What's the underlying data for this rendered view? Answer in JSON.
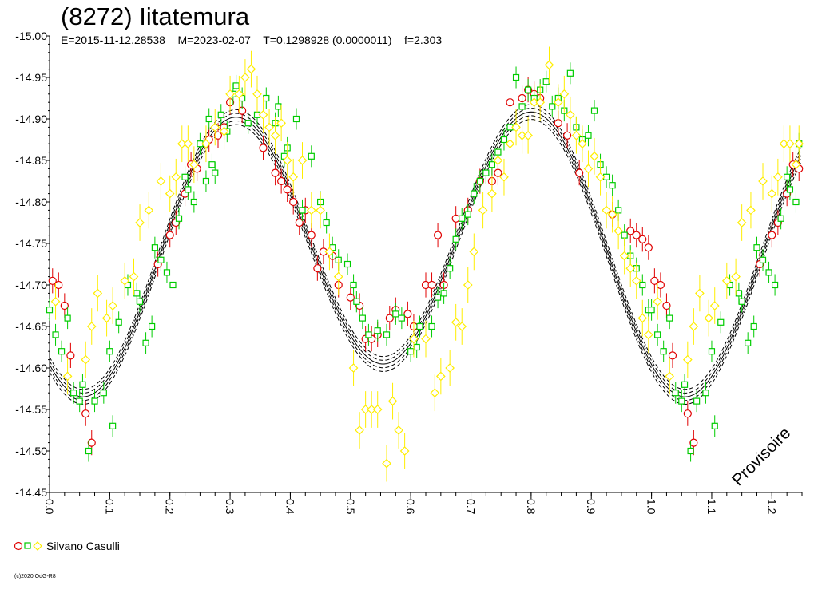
{
  "title": "(8272) Iitatemura",
  "subtitle": "E=2015-11-12.28538    M=2023-02-07    T=0.1298928 (0.0000011)    f=2.303",
  "watermark": "Provisoire",
  "copyright": "(c)2020 OdG-R8",
  "legend": {
    "label": "Silvano Casulli"
  },
  "colors": {
    "series1": "#e00000",
    "series2": "#00cc00",
    "series3": "#ffee00",
    "fit": "#000000"
  },
  "chart_data": {
    "type": "scatter",
    "xlim": [
      0,
      1.25
    ],
    "ylim": [
      -15.0,
      -14.45
    ],
    "y_inverted": true,
    "xticks": [
      "0.0",
      "0.1",
      "0.2",
      "0.3",
      "0.4",
      "0.5",
      "0.6",
      "0.7",
      "0.8",
      "0.9",
      "1.0",
      "1.1",
      "1.2"
    ],
    "yticks": [
      "-15.00",
      "-14.95",
      "-14.90",
      "-14.85",
      "-14.80",
      "-14.75",
      "-14.70",
      "-14.65",
      "-14.60",
      "-14.55",
      "-14.50",
      "-14.45"
    ],
    "series": [
      {
        "marker": "circle",
        "points": [
          [
            0.005,
            -14.705
          ],
          [
            0.015,
            -14.7
          ],
          [
            0.025,
            -14.675
          ],
          [
            0.035,
            -14.615
          ],
          [
            0.06,
            -14.545
          ],
          [
            0.07,
            -14.51
          ],
          [
            0.18,
            -14.725
          ],
          [
            0.2,
            -14.76
          ],
          [
            0.21,
            -14.775
          ],
          [
            0.225,
            -14.81
          ],
          [
            0.235,
            -14.845
          ],
          [
            0.245,
            -14.84
          ],
          [
            0.265,
            -14.875
          ],
          [
            0.28,
            -14.88
          ],
          [
            0.29,
            -14.89
          ],
          [
            0.3,
            -14.92
          ],
          [
            0.32,
            -14.91
          ],
          [
            0.355,
            -14.865
          ],
          [
            0.375,
            -14.835
          ],
          [
            0.385,
            -14.825
          ],
          [
            0.395,
            -14.815
          ],
          [
            0.405,
            -14.8
          ],
          [
            0.415,
            -14.775
          ],
          [
            0.425,
            -14.79
          ],
          [
            0.435,
            -14.76
          ],
          [
            0.445,
            -14.72
          ],
          [
            0.455,
            -14.74
          ],
          [
            0.47,
            -14.735
          ],
          [
            0.48,
            -14.7
          ],
          [
            0.5,
            -14.685
          ],
          [
            0.515,
            -14.675
          ],
          [
            0.525,
            -14.635
          ],
          [
            0.535,
            -14.635
          ],
          [
            0.545,
            -14.64
          ],
          [
            0.565,
            -14.66
          ],
          [
            0.575,
            -14.67
          ],
          [
            0.595,
            -14.665
          ],
          [
            0.605,
            -14.65
          ],
          [
            0.625,
            -14.7
          ],
          [
            0.635,
            -14.7
          ],
          [
            0.645,
            -14.76
          ],
          [
            0.655,
            -14.7
          ],
          [
            0.675,
            -14.78
          ],
          [
            0.695,
            -14.79
          ],
          [
            0.715,
            -14.825
          ],
          [
            0.735,
            -14.825
          ],
          [
            0.745,
            -14.835
          ],
          [
            0.765,
            -14.92
          ],
          [
            0.785,
            -14.925
          ],
          [
            0.795,
            -14.935
          ],
          [
            0.805,
            -14.93
          ],
          [
            0.815,
            -14.925
          ],
          [
            0.845,
            -14.895
          ],
          [
            0.86,
            -14.88
          ],
          [
            0.88,
            -14.835
          ],
          [
            0.935,
            -14.785
          ],
          [
            0.965,
            -14.765
          ],
          [
            0.975,
            -14.76
          ],
          [
            0.985,
            -14.755
          ],
          [
            0.995,
            -14.745
          ],
          [
            1.005,
            -14.705
          ],
          [
            1.015,
            -14.7
          ],
          [
            1.025,
            -14.675
          ],
          [
            1.035,
            -14.615
          ],
          [
            1.06,
            -14.545
          ],
          [
            1.07,
            -14.51
          ],
          [
            1.18,
            -14.725
          ],
          [
            1.2,
            -14.76
          ],
          [
            1.21,
            -14.775
          ],
          [
            1.225,
            -14.81
          ],
          [
            1.235,
            -14.845
          ],
          [
            1.245,
            -14.84
          ]
        ]
      },
      {
        "marker": "square",
        "points": [
          [
            0.0,
            -14.67
          ],
          [
            0.01,
            -14.64
          ],
          [
            0.02,
            -14.62
          ],
          [
            0.03,
            -14.66
          ],
          [
            0.04,
            -14.57
          ],
          [
            0.05,
            -14.56
          ],
          [
            0.055,
            -14.58
          ],
          [
            0.065,
            -14.5
          ],
          [
            0.075,
            -14.56
          ],
          [
            0.09,
            -14.57
          ],
          [
            0.1,
            -14.62
          ],
          [
            0.105,
            -14.53
          ],
          [
            0.115,
            -14.655
          ],
          [
            0.13,
            -14.7
          ],
          [
            0.145,
            -14.69
          ],
          [
            0.15,
            -14.68
          ],
          [
            0.16,
            -14.63
          ],
          [
            0.17,
            -14.65
          ],
          [
            0.175,
            -14.745
          ],
          [
            0.185,
            -14.73
          ],
          [
            0.195,
            -14.715
          ],
          [
            0.205,
            -14.7
          ],
          [
            0.215,
            -14.78
          ],
          [
            0.225,
            -14.83
          ],
          [
            0.23,
            -14.815
          ],
          [
            0.24,
            -14.8
          ],
          [
            0.25,
            -14.87
          ],
          [
            0.26,
            -14.825
          ],
          [
            0.265,
            -14.9
          ],
          [
            0.27,
            -14.845
          ],
          [
            0.275,
            -14.835
          ],
          [
            0.285,
            -14.905
          ],
          [
            0.295,
            -14.885
          ],
          [
            0.305,
            -14.93
          ],
          [
            0.31,
            -14.94
          ],
          [
            0.32,
            -14.925
          ],
          [
            0.33,
            -14.895
          ],
          [
            0.345,
            -14.905
          ],
          [
            0.36,
            -14.925
          ],
          [
            0.375,
            -14.895
          ],
          [
            0.38,
            -14.915
          ],
          [
            0.39,
            -14.855
          ],
          [
            0.395,
            -14.865
          ],
          [
            0.41,
            -14.9
          ],
          [
            0.42,
            -14.79
          ],
          [
            0.435,
            -14.855
          ],
          [
            0.45,
            -14.8
          ],
          [
            0.46,
            -14.775
          ],
          [
            0.47,
            -14.745
          ],
          [
            0.48,
            -14.73
          ],
          [
            0.495,
            -14.725
          ],
          [
            0.505,
            -14.7
          ],
          [
            0.51,
            -14.68
          ],
          [
            0.52,
            -14.66
          ],
          [
            0.53,
            -14.64
          ],
          [
            0.545,
            -14.645
          ],
          [
            0.56,
            -14.64
          ],
          [
            0.575,
            -14.665
          ],
          [
            0.585,
            -14.66
          ],
          [
            0.6,
            -14.62
          ],
          [
            0.61,
            -14.625
          ],
          [
            0.615,
            -14.65
          ],
          [
            0.635,
            -14.65
          ],
          [
            0.645,
            -14.685
          ],
          [
            0.655,
            -14.69
          ],
          [
            0.665,
            -14.72
          ],
          [
            0.675,
            -14.755
          ],
          [
            0.685,
            -14.78
          ],
          [
            0.695,
            -14.785
          ],
          [
            0.705,
            -14.81
          ],
          [
            0.715,
            -14.825
          ],
          [
            0.725,
            -14.835
          ],
          [
            0.735,
            -14.845
          ],
          [
            0.745,
            -14.86
          ],
          [
            0.755,
            -14.875
          ],
          [
            0.765,
            -14.89
          ],
          [
            0.775,
            -14.95
          ],
          [
            0.785,
            -14.915
          ],
          [
            0.795,
            -14.935
          ],
          [
            0.805,
            -14.925
          ],
          [
            0.815,
            -14.935
          ],
          [
            0.825,
            -14.945
          ],
          [
            0.835,
            -14.915
          ],
          [
            0.845,
            -14.925
          ],
          [
            0.855,
            -14.91
          ],
          [
            0.865,
            -14.955
          ],
          [
            0.875,
            -14.89
          ],
          [
            0.885,
            -14.875
          ],
          [
            0.895,
            -14.88
          ],
          [
            0.905,
            -14.91
          ],
          [
            0.915,
            -14.845
          ],
          [
            0.925,
            -14.83
          ],
          [
            0.935,
            -14.82
          ],
          [
            0.945,
            -14.79
          ],
          [
            0.955,
            -14.76
          ],
          [
            0.965,
            -14.735
          ],
          [
            0.975,
            -14.72
          ],
          [
            0.985,
            -14.7
          ],
          [
            0.995,
            -14.67
          ],
          [
            1.0,
            -14.67
          ],
          [
            1.01,
            -14.64
          ],
          [
            1.02,
            -14.62
          ],
          [
            1.03,
            -14.66
          ],
          [
            1.04,
            -14.57
          ],
          [
            1.05,
            -14.56
          ],
          [
            1.055,
            -14.58
          ],
          [
            1.065,
            -14.5
          ],
          [
            1.075,
            -14.56
          ],
          [
            1.09,
            -14.57
          ],
          [
            1.1,
            -14.62
          ],
          [
            1.105,
            -14.53
          ],
          [
            1.115,
            -14.655
          ],
          [
            1.13,
            -14.7
          ],
          [
            1.145,
            -14.69
          ],
          [
            1.15,
            -14.68
          ],
          [
            1.16,
            -14.63
          ],
          [
            1.17,
            -14.65
          ],
          [
            1.175,
            -14.745
          ],
          [
            1.185,
            -14.73
          ],
          [
            1.195,
            -14.715
          ],
          [
            1.205,
            -14.7
          ],
          [
            1.215,
            -14.78
          ],
          [
            1.225,
            -14.83
          ],
          [
            1.23,
            -14.815
          ],
          [
            1.24,
            -14.8
          ],
          [
            1.245,
            -14.87
          ]
        ]
      },
      {
        "marker": "diamond",
        "points": [
          [
            0.01,
            -14.68
          ],
          [
            0.03,
            -14.59
          ],
          [
            0.06,
            -14.61
          ],
          [
            0.07,
            -14.65
          ],
          [
            0.08,
            -14.69
          ],
          [
            0.095,
            -14.66
          ],
          [
            0.105,
            -14.675
          ],
          [
            0.125,
            -14.705
          ],
          [
            0.14,
            -14.71
          ],
          [
            0.15,
            -14.775
          ],
          [
            0.165,
            -14.79
          ],
          [
            0.185,
            -14.825
          ],
          [
            0.2,
            -14.81
          ],
          [
            0.21,
            -14.83
          ],
          [
            0.22,
            -14.87
          ],
          [
            0.23,
            -14.87
          ],
          [
            0.24,
            -14.845
          ],
          [
            0.26,
            -14.87
          ],
          [
            0.275,
            -14.89
          ],
          [
            0.29,
            -14.885
          ],
          [
            0.3,
            -14.93
          ],
          [
            0.315,
            -14.93
          ],
          [
            0.325,
            -14.95
          ],
          [
            0.335,
            -14.96
          ],
          [
            0.345,
            -14.93
          ],
          [
            0.355,
            -14.905
          ],
          [
            0.365,
            -14.89
          ],
          [
            0.375,
            -14.88
          ],
          [
            0.385,
            -14.895
          ],
          [
            0.395,
            -14.85
          ],
          [
            0.405,
            -14.83
          ],
          [
            0.42,
            -14.85
          ],
          [
            0.435,
            -14.79
          ],
          [
            0.45,
            -14.79
          ],
          [
            0.465,
            -14.74
          ],
          [
            0.48,
            -14.71
          ],
          [
            0.505,
            -14.6
          ],
          [
            0.515,
            -14.525
          ],
          [
            0.525,
            -14.55
          ],
          [
            0.535,
            -14.55
          ],
          [
            0.545,
            -14.55
          ],
          [
            0.56,
            -14.485
          ],
          [
            0.57,
            -14.56
          ],
          [
            0.58,
            -14.525
          ],
          [
            0.59,
            -14.5
          ],
          [
            0.605,
            -14.635
          ],
          [
            0.625,
            -14.635
          ],
          [
            0.64,
            -14.57
          ],
          [
            0.65,
            -14.59
          ],
          [
            0.665,
            -14.6
          ],
          [
            0.675,
            -14.655
          ],
          [
            0.685,
            -14.65
          ],
          [
            0.695,
            -14.7
          ],
          [
            0.705,
            -14.74
          ],
          [
            0.72,
            -14.79
          ],
          [
            0.735,
            -14.81
          ],
          [
            0.745,
            -14.85
          ],
          [
            0.755,
            -14.83
          ],
          [
            0.765,
            -14.87
          ],
          [
            0.775,
            -14.89
          ],
          [
            0.785,
            -14.88
          ],
          [
            0.795,
            -14.88
          ],
          [
            0.805,
            -14.92
          ],
          [
            0.815,
            -14.92
          ],
          [
            0.83,
            -14.965
          ],
          [
            0.845,
            -14.92
          ],
          [
            0.855,
            -14.93
          ],
          [
            0.865,
            -14.905
          ],
          [
            0.875,
            -14.88
          ],
          [
            0.885,
            -14.87
          ],
          [
            0.895,
            -14.84
          ],
          [
            0.905,
            -14.855
          ],
          [
            0.915,
            -14.83
          ],
          [
            0.925,
            -14.79
          ],
          [
            0.935,
            -14.785
          ],
          [
            0.945,
            -14.765
          ],
          [
            0.955,
            -14.735
          ],
          [
            0.965,
            -14.72
          ],
          [
            0.975,
            -14.705
          ],
          [
            0.985,
            -14.66
          ],
          [
            0.995,
            -14.64
          ],
          [
            1.01,
            -14.68
          ],
          [
            1.03,
            -14.59
          ],
          [
            1.06,
            -14.61
          ],
          [
            1.07,
            -14.65
          ],
          [
            1.08,
            -14.69
          ],
          [
            1.095,
            -14.66
          ],
          [
            1.105,
            -14.675
          ],
          [
            1.125,
            -14.705
          ],
          [
            1.14,
            -14.71
          ],
          [
            1.15,
            -14.775
          ],
          [
            1.165,
            -14.79
          ],
          [
            1.185,
            -14.825
          ],
          [
            1.2,
            -14.81
          ],
          [
            1.21,
            -14.83
          ],
          [
            1.22,
            -14.87
          ],
          [
            1.23,
            -14.87
          ],
          [
            1.24,
            -14.845
          ],
          [
            1.245,
            -14.87
          ]
        ]
      }
    ],
    "fit": {
      "mean": -14.745,
      "amp1": 0.16,
      "amp2": 0.02,
      "offset1": 0.055,
      "offset2": 0.08
    }
  }
}
